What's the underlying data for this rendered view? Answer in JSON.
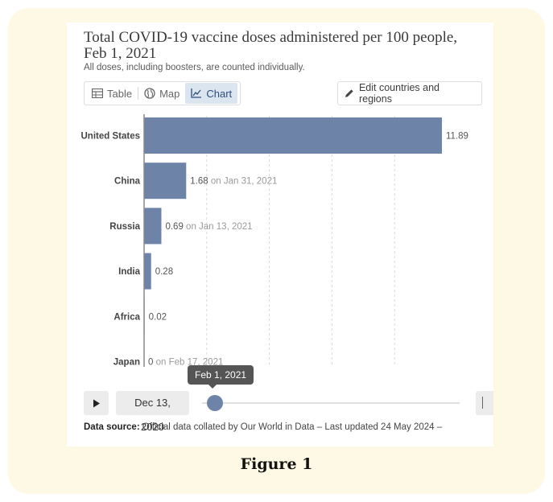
{
  "figure_caption": "Figure 1",
  "header": {
    "title": "Total COVID-19 vaccine doses administered per 100 people, Feb 1, 2021",
    "subtitle": "All doses, including boosters, are counted individually."
  },
  "tabs": [
    {
      "label": "Table",
      "icon": "table-icon",
      "active": false
    },
    {
      "label": "Map",
      "icon": "globe-icon",
      "active": false
    },
    {
      "label": "Chart",
      "icon": "line-chart-icon",
      "active": true
    }
  ],
  "edit_button": {
    "label": "Edit countries and regions",
    "icon": "pencil-icon"
  },
  "timeline": {
    "start_date": "Dec 13, 2020",
    "current_date": "Feb 1, 2021",
    "position_fraction": 0.02
  },
  "source": {
    "label": "Data source:",
    "text": "Official data collated by Our World in Data – Last updated 24 May 2024 –"
  },
  "colors": {
    "bar": "#6d83a8",
    "accent_tab_bg": "#dbe5f0",
    "frame_bg": "#fdf9e4"
  },
  "chart_data": {
    "type": "bar",
    "orientation": "horizontal",
    "title": "Total COVID-19 vaccine doses administered per 100 people, Feb 1, 2021",
    "subtitle": "All doses, including boosters, are counted individually.",
    "xlim": [
      0,
      12.5
    ],
    "grid": true,
    "categories": [
      "United States",
      "China",
      "Russia",
      "India",
      "Africa",
      "Japan"
    ],
    "values": [
      11.89,
      1.68,
      0.69,
      0.28,
      0.02,
      0
    ],
    "value_labels": [
      "11.89",
      "1.68",
      "0.69",
      "0.28",
      "0.02",
      "0"
    ],
    "notes": [
      "",
      "on Jan 31, 2021",
      "on Jan 13, 2021",
      "",
      "",
      "on Feb 17, 2021"
    ]
  }
}
